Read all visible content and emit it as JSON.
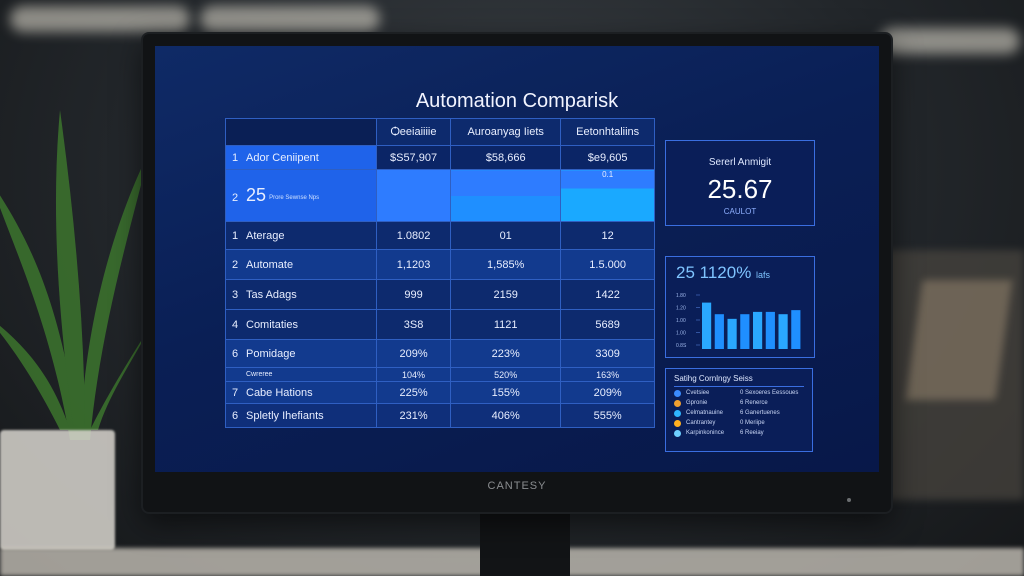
{
  "screen": {
    "title": "Automation Comparisk"
  },
  "table": {
    "headers": [
      "",
      "Ѻeeiaiiiie",
      "Auroanyag Iiets",
      "Eetonhtaliins"
    ],
    "rows": [
      {
        "idx": "1",
        "label": "Ador Ceniipent",
        "values": [
          "$S57,907",
          "$58,666",
          "$e9,605"
        ]
      },
      {
        "idx": "2",
        "label": "25",
        "sub": "Prore Sewnse Nps",
        "values": [
          "",
          "",
          "0.1"
        ]
      },
      {
        "idx": "1",
        "label": "Aterage",
        "values": [
          "1.0802",
          "01",
          "12"
        ]
      },
      {
        "idx": "2",
        "label": "Automate",
        "values": [
          "1,1203",
          "1,585%",
          "1.5.000"
        ]
      },
      {
        "idx": "3",
        "label": "Tas Adags",
        "values": [
          "999",
          "2159",
          "1422"
        ]
      },
      {
        "idx": "4",
        "label": "Comitaties",
        "values": [
          "3S8",
          "1121",
          "5689"
        ]
      },
      {
        "idx": "6",
        "label": "Pomidage",
        "values": [
          "209%",
          "223%",
          "3309"
        ]
      },
      {
        "idx": "",
        "label": "Cwreree",
        "values": [
          "104%",
          "520%",
          "163%"
        ]
      },
      {
        "idx": "7",
        "label": "Cabe Hations",
        "values": [
          "225%",
          "155%",
          "209%"
        ]
      },
      {
        "idx": "6",
        "label": "Spletly Ihefiants",
        "values": [
          "231%",
          "406%",
          "555%"
        ]
      }
    ]
  },
  "kpi": {
    "caption": "Sererl Anmigit",
    "value": "25.67",
    "sub": "CAULOT"
  },
  "bars_panel": {
    "heading": "25 1120%",
    "heading_sub": "lafs",
    "tick_labels": [
      "1.80",
      "1.20",
      "1.00",
      "1.00",
      "0.8S"
    ],
    "chart_data": {
      "type": "bar",
      "categories": [
        "",
        "",
        "",
        "",
        "",
        "",
        "",
        ""
      ],
      "values": [
        0.8,
        0.6,
        0.52,
        0.6,
        0.64,
        0.64,
        0.6,
        0.67
      ],
      "ylim": [
        0,
        1
      ]
    }
  },
  "legend_panel": {
    "heading": "Satihg Cornlngy Seiss",
    "items": [
      {
        "left": "Cvetsiee",
        "right": "0 Sexoeres Eessoues",
        "color": "#3b8cff"
      },
      {
        "left": "Gpronie",
        "right": "6 Renerce",
        "color": "#f0a030"
      },
      {
        "left": "Celmatnauine",
        "right": "6 Ganertuenes",
        "color": "#2fb6ff"
      },
      {
        "left": "Cantrantey",
        "right": "0 Meriipe",
        "color": "#ffb020"
      },
      {
        "left": "Karpinkonince",
        "right": "6 Reeiay",
        "color": "#6fd0ff"
      }
    ]
  },
  "monitor": {
    "brand": "CANTESY"
  },
  "colors": {
    "screen_bg": "#0a1f55",
    "accent": "#1f63ea",
    "highlight": "#1aa9ff"
  }
}
